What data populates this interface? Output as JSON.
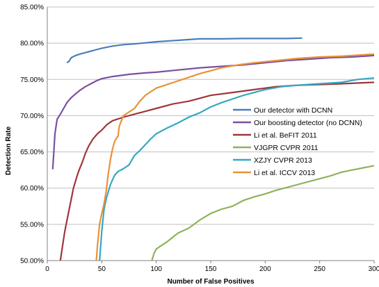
{
  "chart_data": {
    "type": "line",
    "xlabel": "Number of False Positives",
    "ylabel": "Detection Rate",
    "xlim": [
      0,
      300
    ],
    "ylim": [
      50,
      85
    ],
    "x_ticks": [
      0,
      50,
      100,
      150,
      200,
      250,
      300
    ],
    "y_ticks": [
      50,
      55,
      60,
      65,
      70,
      75,
      80,
      85
    ],
    "y_tick_labels": [
      "50.00%",
      "55.00%",
      "60.00%",
      "65.00%",
      "70.00%",
      "75.00%",
      "80.00%",
      "85.00%"
    ],
    "grid": "horizontal",
    "legend_position": "right-center",
    "series": [
      {
        "name": "Our detector with DCNN",
        "color": "#4A7EBB",
        "points": [
          [
            18,
            77.3
          ],
          [
            20,
            77.5
          ],
          [
            22,
            78.0
          ],
          [
            26,
            78.3
          ],
          [
            30,
            78.5
          ],
          [
            35,
            78.7
          ],
          [
            40,
            78.9
          ],
          [
            45,
            79.1
          ],
          [
            50,
            79.3
          ],
          [
            60,
            79.6
          ],
          [
            70,
            79.8
          ],
          [
            80,
            79.9
          ],
          [
            100,
            80.2
          ],
          [
            120,
            80.4
          ],
          [
            140,
            80.6
          ],
          [
            160,
            80.6
          ],
          [
            180,
            80.65
          ],
          [
            200,
            80.65
          ],
          [
            220,
            80.65
          ],
          [
            234,
            80.7
          ]
        ]
      },
      {
        "name": "Our boosting detector (no DCNN)",
        "color": "#7B4FA1",
        "points": [
          [
            5,
            62.6
          ],
          [
            6,
            65.0
          ],
          [
            7,
            67.5
          ],
          [
            9,
            69.5
          ],
          [
            12,
            70.2
          ],
          [
            15,
            71.0
          ],
          [
            18,
            71.8
          ],
          [
            22,
            72.5
          ],
          [
            26,
            73.0
          ],
          [
            30,
            73.5
          ],
          [
            35,
            74.0
          ],
          [
            40,
            74.4
          ],
          [
            45,
            74.8
          ],
          [
            50,
            75.1
          ],
          [
            60,
            75.4
          ],
          [
            75,
            75.7
          ],
          [
            90,
            75.9
          ],
          [
            100,
            76.0
          ],
          [
            120,
            76.3
          ],
          [
            140,
            76.6
          ],
          [
            160,
            76.8
          ],
          [
            180,
            77.0
          ],
          [
            200,
            77.3
          ],
          [
            220,
            77.6
          ],
          [
            240,
            77.8
          ],
          [
            260,
            78.0
          ],
          [
            280,
            78.1
          ],
          [
            300,
            78.3
          ]
        ]
      },
      {
        "name": "Li et al. BeFIT 2011",
        "color": "#A0353B",
        "points": [
          [
            12,
            50.0
          ],
          [
            14,
            52.0
          ],
          [
            16,
            54.0
          ],
          [
            18,
            55.5
          ],
          [
            20,
            57.0
          ],
          [
            22,
            58.5
          ],
          [
            24,
            60.0
          ],
          [
            26,
            61.0
          ],
          [
            28,
            62.0
          ],
          [
            30,
            62.8
          ],
          [
            32,
            63.5
          ],
          [
            35,
            64.8
          ],
          [
            38,
            65.8
          ],
          [
            42,
            66.8
          ],
          [
            46,
            67.5
          ],
          [
            50,
            68.0
          ],
          [
            55,
            68.8
          ],
          [
            60,
            69.3
          ],
          [
            70,
            69.8
          ],
          [
            80,
            70.2
          ],
          [
            90,
            70.6
          ],
          [
            100,
            71.0
          ],
          [
            115,
            71.6
          ],
          [
            130,
            72.0
          ],
          [
            140,
            72.4
          ],
          [
            150,
            72.8
          ],
          [
            170,
            73.2
          ],
          [
            190,
            73.6
          ],
          [
            210,
            74.0
          ],
          [
            230,
            74.2
          ],
          [
            250,
            74.3
          ],
          [
            270,
            74.4
          ],
          [
            300,
            74.6
          ]
        ]
      },
      {
        "name": "VJGPR CVPR 2011",
        "color": "#8DB359",
        "points": [
          [
            96,
            50.0
          ],
          [
            98,
            51.0
          ],
          [
            100,
            51.6
          ],
          [
            105,
            52.1
          ],
          [
            110,
            52.6
          ],
          [
            115,
            53.2
          ],
          [
            120,
            53.8
          ],
          [
            130,
            54.5
          ],
          [
            140,
            55.6
          ],
          [
            150,
            56.5
          ],
          [
            160,
            57.1
          ],
          [
            170,
            57.5
          ],
          [
            180,
            58.3
          ],
          [
            190,
            58.8
          ],
          [
            200,
            59.2
          ],
          [
            210,
            59.7
          ],
          [
            220,
            60.1
          ],
          [
            230,
            60.5
          ],
          [
            240,
            60.9
          ],
          [
            250,
            61.3
          ],
          [
            260,
            61.7
          ],
          [
            270,
            62.2
          ],
          [
            280,
            62.5
          ],
          [
            290,
            62.8
          ],
          [
            300,
            63.1
          ]
        ]
      },
      {
        "name": "XZJY CVPR 2013",
        "color": "#35A8C3",
        "points": [
          [
            48,
            50.0
          ],
          [
            49,
            52.0
          ],
          [
            50,
            54.0
          ],
          [
            51,
            55.5
          ],
          [
            52,
            57.0
          ],
          [
            54,
            58.5
          ],
          [
            56,
            59.5
          ],
          [
            58,
            60.5
          ],
          [
            60,
            61.2
          ],
          [
            62,
            61.8
          ],
          [
            65,
            62.3
          ],
          [
            70,
            62.7
          ],
          [
            75,
            63.2
          ],
          [
            80,
            64.5
          ],
          [
            85,
            65.2
          ],
          [
            90,
            66.0
          ],
          [
            95,
            66.8
          ],
          [
            100,
            67.5
          ],
          [
            110,
            68.3
          ],
          [
            120,
            69.0
          ],
          [
            130,
            69.8
          ],
          [
            140,
            70.4
          ],
          [
            150,
            71.2
          ],
          [
            160,
            71.8
          ],
          [
            170,
            72.3
          ],
          [
            180,
            72.8
          ],
          [
            190,
            73.2
          ],
          [
            200,
            73.6
          ],
          [
            215,
            74.0
          ],
          [
            230,
            74.2
          ],
          [
            250,
            74.4
          ],
          [
            270,
            74.6
          ],
          [
            285,
            75.0
          ],
          [
            300,
            75.2
          ]
        ]
      },
      {
        "name": "Li et al. ICCV 2013",
        "color": "#E8923A",
        "points": [
          [
            45,
            50.0
          ],
          [
            46,
            52.0
          ],
          [
            47,
            53.5
          ],
          [
            48,
            55.0
          ],
          [
            50,
            56.5
          ],
          [
            52,
            57.8
          ],
          [
            54,
            59.5
          ],
          [
            56,
            62.0
          ],
          [
            58,
            64.0
          ],
          [
            60,
            65.5
          ],
          [
            62,
            66.5
          ],
          [
            64,
            67.0
          ],
          [
            65,
            67.2
          ],
          [
            66,
            68.5
          ],
          [
            68,
            69.3
          ],
          [
            70,
            70.0
          ],
          [
            75,
            70.5
          ],
          [
            80,
            71.0
          ],
          [
            85,
            72.0
          ],
          [
            90,
            72.8
          ],
          [
            95,
            73.3
          ],
          [
            100,
            73.8
          ],
          [
            110,
            74.3
          ],
          [
            120,
            74.8
          ],
          [
            130,
            75.3
          ],
          [
            140,
            75.8
          ],
          [
            150,
            76.2
          ],
          [
            160,
            76.6
          ],
          [
            175,
            77.0
          ],
          [
            190,
            77.3
          ],
          [
            210,
            77.6
          ],
          [
            230,
            77.9
          ],
          [
            250,
            78.1
          ],
          [
            270,
            78.2
          ],
          [
            290,
            78.4
          ],
          [
            300,
            78.5
          ]
        ]
      }
    ]
  }
}
